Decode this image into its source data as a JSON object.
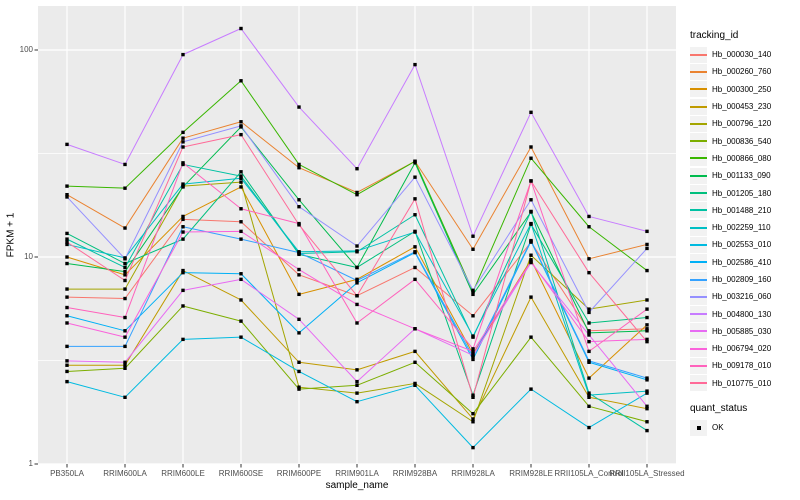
{
  "chart_data": {
    "type": "line",
    "title": "",
    "xlabel": "sample_name",
    "ylabel": "FPKM + 1",
    "y_scale": "log10",
    "ylim": [
      1,
      140
    ],
    "y_ticks": [
      1,
      10,
      100
    ],
    "y_tick_labels": [
      "1",
      "10",
      "100"
    ],
    "grid": "white major and minor gridlines on grey panel",
    "legend_position": "right",
    "legend_title": "tracking_id",
    "point_legend_title": "quant_status",
    "point_legend_label": "OK",
    "point_marker_shape": "filled-square",
    "categories": [
      "PB350LA",
      "RRIM600LA",
      "RRIM600LE",
      "RRIM600SE",
      "RRIM600PE",
      "RRIM901LA",
      "RRIM928BA",
      "RRIM928LA",
      "RRIM928LE",
      "RRII105LA_Control",
      "RRII105LA_Stressed"
    ],
    "series": [
      {
        "name": "Hb_000030_140",
        "color": "#F8766D",
        "values": [
          6.4,
          6.3,
          15.2,
          14.8,
          8.2,
          6.5,
          8.9,
          5.2,
          11.8,
          4.4,
          4.5
        ]
      },
      {
        "name": "Hb_000260_760",
        "color": "#EA8331",
        "values": [
          20,
          13.8,
          37.5,
          45,
          27,
          20.5,
          29,
          10.9,
          34,
          9.8,
          11.5
        ]
      },
      {
        "name": "Hb_000300_250",
        "color": "#D89000",
        "values": [
          10,
          8.2,
          15.7,
          21.8,
          6.6,
          7.8,
          11.2,
          3.4,
          9.7,
          2.6,
          4.7
        ]
      },
      {
        "name": "Hb_000453_230",
        "color": "#C09B00",
        "values": [
          3.0,
          3.0,
          8.6,
          6.2,
          3.1,
          2.85,
          3.5,
          1.65,
          6.4,
          2.1,
          1.85
        ]
      },
      {
        "name": "Hb_000796_120",
        "color": "#A3A500",
        "values": [
          7.0,
          7.0,
          22,
          23,
          2.35,
          2.2,
          2.45,
          1.6,
          10.2,
          5.6,
          6.2
        ]
      },
      {
        "name": "Hb_000836_540",
        "color": "#7CAE00",
        "values": [
          2.8,
          2.9,
          5.8,
          4.9,
          2.3,
          2.4,
          3.1,
          1.75,
          4.1,
          1.9,
          1.6
        ]
      },
      {
        "name": "Hb_000866_080",
        "color": "#39B600",
        "values": [
          22,
          21.5,
          40,
          71,
          28,
          20,
          29,
          6.8,
          30,
          14,
          8.6
        ]
      },
      {
        "name": "Hb_001133_090",
        "color": "#00BB4E",
        "values": [
          9.3,
          8.5,
          21.8,
          42.5,
          18.9,
          8.9,
          28.5,
          6.6,
          16.5,
          4.3,
          4.4
        ]
      },
      {
        "name": "Hb_001205_180",
        "color": "#00BF7D",
        "values": [
          13,
          9.3,
          12.2,
          25.8,
          10.3,
          8.9,
          13.3,
          2.15,
          14.4,
          4.8,
          5.1
        ]
      },
      {
        "name": "Hb_001488_210",
        "color": "#00C1A3",
        "values": [
          12.2,
          8.9,
          28,
          24.6,
          10.4,
          10.6,
          16,
          4.1,
          16.6,
          2.2,
          1.45
        ]
      },
      {
        "name": "Hb_002259_110",
        "color": "#00BFC4",
        "values": [
          11.5,
          9.9,
          22.5,
          24,
          10.6,
          10.7,
          13.2,
          4.15,
          14.5,
          2.15,
          2.25
        ]
      },
      {
        "name": "Hb_002553_010",
        "color": "#00BAE0",
        "values": [
          2.5,
          2.1,
          4.0,
          4.1,
          2.8,
          2.0,
          2.4,
          1.2,
          2.3,
          1.5,
          2.2
        ]
      },
      {
        "name": "Hb_002586_410",
        "color": "#00B0F6",
        "values": [
          5.2,
          4.4,
          8.4,
          8.3,
          4.3,
          7.5,
          10.5,
          3.2,
          11.9,
          3.1,
          2.55
        ]
      },
      {
        "name": "Hb_002809_160",
        "color": "#35A2FF",
        "values": [
          3.7,
          3.7,
          14,
          12.2,
          10.5,
          7.7,
          10.6,
          3.3,
          12.0,
          3.15,
          2.6
        ]
      },
      {
        "name": "Hb_003216_060",
        "color": "#9590FF",
        "values": [
          19.5,
          9.8,
          36,
          43,
          17.5,
          11.3,
          24.3,
          6.9,
          18.9,
          5.4,
          11.0
        ]
      },
      {
        "name": "Hb_004800_130",
        "color": "#C77CFF",
        "values": [
          35,
          28,
          95,
          127,
          53,
          26.7,
          85,
          12.6,
          50,
          15.7,
          13.3
        ]
      },
      {
        "name": "Hb_005885_030",
        "color": "#E76BF3",
        "values": [
          3.15,
          3.1,
          6.9,
          7.8,
          5.0,
          2.5,
          4.5,
          3.35,
          9.4,
          4.2,
          1.9
        ]
      },
      {
        "name": "Hb_006794_020",
        "color": "#FA62DB",
        "values": [
          4.8,
          4.1,
          13.2,
          13.3,
          8.7,
          5.9,
          4.5,
          3.5,
          9.5,
          3.9,
          4.0
        ]
      },
      {
        "name": "Hb_009178_010",
        "color": "#FF62BC",
        "values": [
          5.7,
          5.1,
          28.5,
          17.1,
          14.5,
          4.8,
          7.8,
          3.6,
          23.3,
          3.5,
          5.6
        ]
      },
      {
        "name": "Hb_010775_010",
        "color": "#FF6A98",
        "values": [
          11.8,
          7.7,
          34,
          39,
          14.3,
          6.5,
          19.1,
          2.1,
          23.3,
          8.4,
          3.9
        ]
      }
    ],
    "colors": {
      "panel_background": "#EBEBEB",
      "grid_major": "#FFFFFF",
      "grid_minor": "#FFFFFF",
      "tick_label": "#4D4D4D",
      "tick_mark": "#333333",
      "axis_title": "#000000",
      "legend_key_background": "#F2F2F2",
      "point_marker": "#000000",
      "figure_background": "#FFFFFF"
    }
  }
}
